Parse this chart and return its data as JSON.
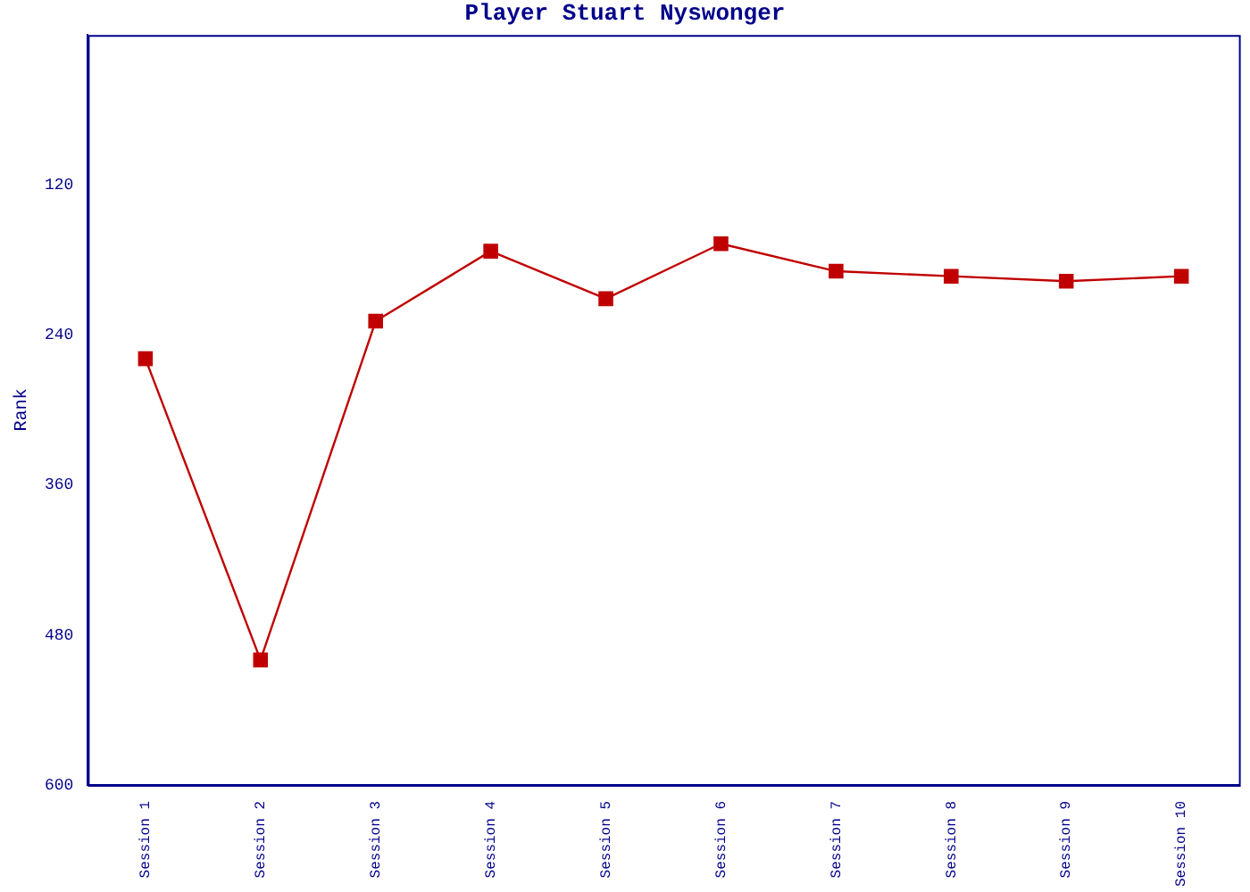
{
  "chart_data": {
    "type": "line",
    "title": "Player Stuart Nyswonger",
    "ylabel": "Rank",
    "categories": [
      "Session 1",
      "Session 2",
      "Session 3",
      "Session 4",
      "Session 5",
      "Session 6",
      "Session 7",
      "Session 8",
      "Session 9",
      "Session 10"
    ],
    "series": [
      {
        "color": "#c00000",
        "values": [
          259,
          500,
          229,
          173,
          211,
          167,
          189,
          193,
          197,
          193
        ]
      }
    ],
    "ylim": [
      600,
      0
    ],
    "yticks": [
      120,
      240,
      360,
      480,
      600
    ],
    "grid": false,
    "legend": false,
    "marker": "square",
    "line_style": "solid"
  }
}
